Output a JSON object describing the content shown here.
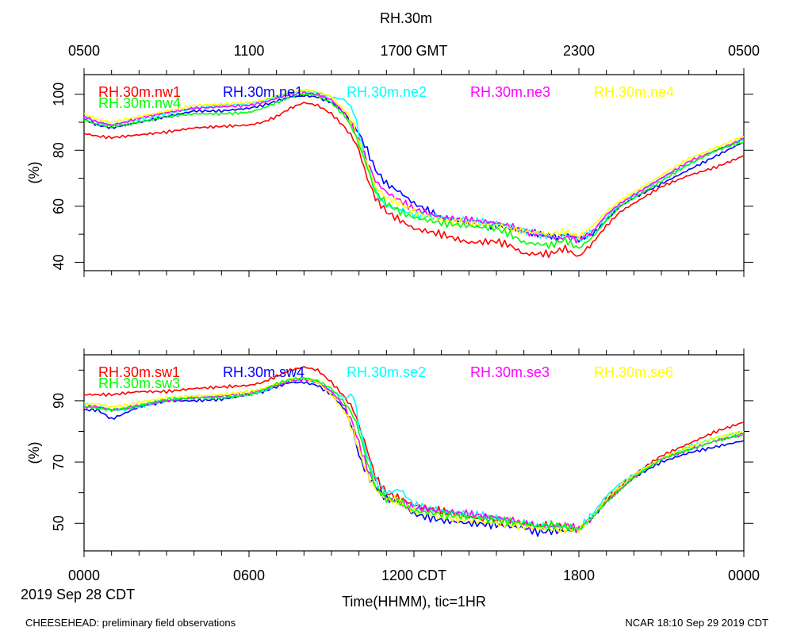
{
  "title": "RH.30m",
  "top_axis_ticks": [
    "0500",
    "1100",
    "1700 GMT",
    "2300",
    "0500"
  ],
  "bottom_axis_ticks": [
    "0000",
    "0600",
    "1200 CDT",
    "1800",
    "0000"
  ],
  "date_label": "2019 Sep 28 CDT",
  "xlabel": "Time(HHMM), tic=1HR",
  "footer_left": "CHEESEHEAD: preliminary field observations",
  "footer_right": "NCAR 18:10 Sep 29 2019 CDT",
  "colors": {
    "red": "#ff0000",
    "blue": "#0000ff",
    "cyan": "#00ffff",
    "magenta": "#ff00ff",
    "yellow": "#ffff00",
    "green": "#00ff00"
  },
  "chart_data": [
    {
      "type": "line",
      "title": "RH.30m",
      "ylabel": "(%)",
      "xlabel": "Time(HHMM), tic=1HR",
      "x_unit": "hours since 0000 CDT 2019 Sep 28",
      "xlim": [
        0,
        24
      ],
      "ylim": [
        37,
        107
      ],
      "yticks": [
        40,
        60,
        80,
        100
      ],
      "ytick_labels": [
        "40",
        "60",
        "80",
        "100"
      ],
      "series": [
        {
          "name": "RH.30m.nw1",
          "color": "red",
          "x": [
            0,
            0.5,
            1,
            1.5,
            2,
            3,
            4,
            5,
            6,
            6.5,
            7,
            7.5,
            8,
            8.5,
            9,
            9.5,
            9.8,
            10,
            10.3,
            10.6,
            11,
            11.5,
            12,
            13,
            14,
            15,
            15.5,
            16,
            17,
            17.2,
            17.5,
            17.8,
            18,
            18.5,
            19,
            19.5,
            20,
            21,
            22,
            23,
            24
          ],
          "y": [
            86,
            85,
            84.5,
            85,
            85.5,
            86.5,
            88,
            88.5,
            89,
            90,
            92,
            95,
            97,
            96,
            93,
            88,
            84,
            80,
            70,
            63,
            58,
            55,
            52,
            50,
            47,
            47.5,
            46,
            43,
            43,
            44,
            45,
            43,
            42,
            47,
            53,
            58,
            61,
            67,
            71,
            74,
            78
          ]
        },
        {
          "name": "RH.30m.ne1",
          "color": "blue",
          "x": [
            0,
            0.5,
            1,
            1.5,
            2,
            3,
            4,
            5,
            6,
            6.5,
            7,
            7.5,
            8,
            8.5,
            9,
            9.5,
            9.8,
            10,
            10.3,
            10.6,
            11,
            11.5,
            12,
            13,
            14,
            15,
            15.5,
            16,
            17,
            17.2,
            17.5,
            17.8,
            18,
            18.5,
            19,
            19.5,
            20,
            21,
            22,
            23,
            24
          ],
          "y": [
            91,
            89,
            88,
            89,
            90,
            92,
            94,
            94,
            95,
            96,
            97.5,
            99,
            99.5,
            99,
            97,
            93,
            89,
            86,
            80,
            73,
            68,
            65,
            61,
            56,
            54,
            53,
            52,
            51,
            49.5,
            49,
            50,
            49,
            48,
            50,
            55,
            60,
            63,
            68,
            73,
            78,
            83
          ]
        },
        {
          "name": "RH.30m.ne2",
          "color": "cyan",
          "x": [
            0,
            0.5,
            1,
            1.5,
            2,
            3,
            4,
            5,
            6,
            6.5,
            7,
            7.5,
            8,
            8.5,
            9,
            9.5,
            9.8,
            10,
            10.3,
            10.6,
            11,
            11.5,
            12,
            13,
            14,
            15,
            15.5,
            16,
            17,
            17.2,
            17.5,
            17.8,
            18,
            18.5,
            19,
            19.5,
            20,
            21,
            22,
            23,
            24
          ],
          "y": [
            92,
            90,
            89,
            90,
            91,
            93,
            95,
            96,
            96.5,
            97.5,
            99,
            100.5,
            101,
            100.5,
            99,
            98,
            94,
            86,
            75,
            65,
            60,
            59,
            57,
            56,
            55,
            54,
            53,
            51,
            49,
            48.5,
            50,
            49,
            48,
            51,
            56,
            61,
            64,
            70,
            75,
            80,
            84
          ]
        },
        {
          "name": "RH.30m.ne3",
          "color": "magenta",
          "x": [
            0,
            0.5,
            1,
            1.5,
            2,
            3,
            4,
            5,
            6,
            6.5,
            7,
            7.5,
            8,
            8.5,
            9,
            9.5,
            9.8,
            10,
            10.3,
            10.6,
            11,
            11.5,
            12,
            13,
            14,
            15,
            15.5,
            16,
            17,
            17.2,
            17.5,
            17.8,
            18,
            18.5,
            19,
            19.5,
            20,
            21,
            22,
            23,
            24
          ],
          "y": [
            92,
            90,
            89,
            90,
            91.5,
            93.5,
            95,
            95.5,
            96,
            97,
            98.5,
            100,
            100.5,
            100,
            98,
            93,
            88,
            83,
            76,
            69,
            65,
            62,
            59,
            56,
            55,
            54,
            53,
            51,
            49,
            48,
            49,
            48.5,
            48,
            51,
            57,
            61,
            64,
            70,
            76,
            80,
            84
          ]
        },
        {
          "name": "RH.30m.ne4",
          "color": "yellow",
          "x": [
            0,
            0.5,
            1,
            1.5,
            2,
            3,
            4,
            5,
            6,
            6.5,
            7,
            7.5,
            8,
            8.5,
            9,
            9.5,
            9.8,
            10,
            10.3,
            10.6,
            11,
            11.5,
            12,
            13,
            14,
            15,
            15.5,
            16,
            17,
            17.2,
            17.5,
            17.8,
            18,
            18.5,
            19,
            19.5,
            20,
            21,
            22,
            23,
            24
          ],
          "y": [
            93,
            91,
            90,
            91,
            92,
            94,
            96,
            96.5,
            97,
            98,
            99.5,
            101,
            101.5,
            101,
            99,
            94,
            89,
            83,
            75,
            67,
            63,
            61,
            58,
            55,
            54,
            53,
            52,
            51,
            50,
            50.5,
            51,
            50,
            49,
            53,
            58,
            62,
            65,
            71,
            77,
            81,
            85
          ]
        },
        {
          "name": "RH.30m.nw4",
          "color": "green",
          "x": [
            0,
            0.5,
            1,
            1.5,
            2,
            3,
            4,
            5,
            6,
            6.5,
            7,
            7.5,
            8,
            8.5,
            9,
            9.5,
            9.8,
            10,
            10.3,
            10.6,
            11,
            11.5,
            12,
            13,
            14,
            15,
            15.5,
            16,
            17,
            17.2,
            17.5,
            17.8,
            18,
            18.5,
            19,
            19.5,
            20,
            21,
            22,
            23,
            24
          ],
          "y": [
            91,
            89,
            88.5,
            89,
            90,
            92,
            93,
            93,
            93.5,
            95,
            97,
            99,
            100,
            99.5,
            97,
            92,
            87,
            82,
            74,
            65,
            61,
            58,
            56,
            54,
            53,
            52,
            50,
            47,
            46,
            47,
            48,
            46,
            45,
            49,
            55,
            60,
            63,
            69,
            75,
            80,
            83
          ]
        }
      ]
    },
    {
      "type": "line",
      "ylabel": "(%)",
      "xlabel": "Time(HHMM), tic=1HR",
      "x_unit": "hours since 0000 CDT 2019 Sep 28",
      "xlim": [
        0,
        24
      ],
      "ylim": [
        41,
        105
      ],
      "yticks": [
        50,
        70,
        90
      ],
      "ytick_labels": [
        "50",
        "70",
        "90"
      ],
      "series": [
        {
          "name": "RH.30m.sw1",
          "color": "red",
          "x": [
            0,
            0.5,
            1,
            1.5,
            2,
            3,
            4,
            5,
            6,
            6.5,
            7,
            7.5,
            8,
            8.5,
            9,
            9.5,
            9.8,
            10,
            10.3,
            10.6,
            11,
            11.5,
            12,
            13,
            14,
            15,
            16,
            16.5,
            17,
            17.5,
            18,
            18.5,
            19,
            19.5,
            20,
            21,
            22,
            23,
            24
          ],
          "y": [
            92,
            92,
            92,
            92.5,
            93,
            93,
            94,
            94.5,
            95,
            96,
            98,
            100,
            101,
            100,
            96,
            91,
            87,
            82,
            74,
            65,
            60,
            58,
            56,
            54,
            52,
            51,
            50,
            49,
            49.5,
            49,
            48,
            52,
            58,
            62,
            66,
            72,
            76,
            80,
            83
          ]
        },
        {
          "name": "RH.30m.sw4",
          "color": "blue",
          "x": [
            0,
            0.5,
            1,
            1.5,
            2,
            3,
            4,
            5,
            6,
            6.5,
            7,
            7.5,
            8,
            8.5,
            9,
            9.5,
            9.8,
            10,
            10.3,
            10.6,
            11,
            11.5,
            12,
            13,
            14,
            15,
            16,
            16.5,
            17,
            17.5,
            18,
            18.5,
            19,
            19.5,
            20,
            21,
            22,
            23,
            24
          ],
          "y": [
            87,
            87,
            84,
            86,
            88,
            90,
            90,
            90.5,
            92,
            93,
            94.5,
            96,
            96,
            95,
            92,
            87,
            80,
            72,
            66,
            62,
            58,
            57,
            53,
            51,
            50,
            49.5,
            48.5,
            47,
            47.5,
            47.5,
            48,
            52,
            57,
            61,
            65,
            70,
            73,
            75,
            77
          ]
        },
        {
          "name": "RH.30m.se2",
          "color": "cyan",
          "x": [
            0,
            0.5,
            1,
            1.5,
            2,
            3,
            4,
            5,
            6,
            6.5,
            7,
            7.5,
            8,
            8.5,
            9,
            9.5,
            9.8,
            10,
            10.3,
            10.6,
            11,
            11.5,
            12,
            13,
            14,
            15,
            16,
            16.5,
            17,
            17.5,
            18,
            18.5,
            19,
            19.5,
            20,
            21,
            22,
            23,
            24
          ],
          "y": [
            89,
            88,
            87,
            87,
            88,
            90,
            91,
            91,
            92,
            93,
            95,
            96.5,
            97,
            96,
            93,
            91,
            92,
            82,
            72,
            64,
            60,
            61,
            56,
            54,
            53,
            52,
            50,
            49,
            49,
            48.5,
            48,
            53,
            59,
            63,
            66,
            71,
            75,
            78,
            80
          ]
        },
        {
          "name": "RH.30m.se3",
          "color": "magenta",
          "x": [
            0,
            0.5,
            1,
            1.5,
            2,
            3,
            4,
            5,
            6,
            6.5,
            7,
            7.5,
            8,
            8.5,
            9,
            9.5,
            9.8,
            10,
            10.3,
            10.6,
            11,
            11.5,
            12,
            13,
            14,
            15,
            16,
            16.5,
            17,
            17.5,
            18,
            18.5,
            19,
            19.5,
            20,
            21,
            22,
            23,
            24
          ],
          "y": [
            88,
            88,
            87,
            87.5,
            88.5,
            90,
            91,
            91.5,
            92.5,
            93.5,
            95,
            96.5,
            97,
            96,
            93,
            88,
            82,
            76,
            68,
            62,
            58,
            57,
            55,
            54,
            53,
            52,
            50,
            49,
            49,
            49.5,
            48,
            52,
            57,
            61,
            65,
            71,
            74,
            77,
            79
          ]
        },
        {
          "name": "RH.30m.se6",
          "color": "yellow",
          "x": [
            0,
            0.5,
            1,
            1.5,
            2,
            3,
            4,
            5,
            6,
            6.5,
            7,
            7.5,
            8,
            8.5,
            9,
            9.5,
            9.8,
            10,
            10.3,
            10.6,
            11,
            11.5,
            12,
            13,
            14,
            15,
            16,
            16.5,
            17,
            17.5,
            18,
            18.5,
            19,
            19.5,
            20,
            21,
            22,
            23,
            24
          ],
          "y": [
            89,
            89,
            88,
            88.5,
            89.5,
            91,
            91.5,
            92,
            93,
            94,
            95.5,
            97,
            97.5,
            96,
            92,
            86,
            80,
            74,
            66,
            61,
            58,
            57,
            54,
            52,
            51,
            50,
            49,
            48.5,
            48,
            48,
            48,
            52,
            58,
            62,
            66,
            71,
            75,
            78,
            80
          ]
        },
        {
          "name": "RH.30m.sw3",
          "color": "green",
          "x": [
            0,
            0.5,
            1,
            1.5,
            2,
            3,
            4,
            5,
            6,
            6.5,
            7,
            7.5,
            8,
            8.5,
            9,
            9.5,
            9.8,
            10,
            10.3,
            10.6,
            11,
            11.5,
            12,
            13,
            14,
            15,
            16,
            16.5,
            17,
            17.5,
            18,
            18.5,
            19,
            19.5,
            20,
            21,
            22,
            23,
            24
          ],
          "y": [
            88,
            87.5,
            87,
            87.5,
            88.5,
            90.5,
            91,
            91,
            92,
            93.5,
            95.5,
            97,
            97.5,
            96.5,
            94,
            89,
            85,
            80,
            70,
            62,
            58,
            57,
            54,
            53,
            52,
            51,
            50,
            49,
            49.5,
            49,
            48,
            52,
            57,
            61,
            65,
            71,
            74,
            77,
            79
          ]
        }
      ]
    }
  ]
}
